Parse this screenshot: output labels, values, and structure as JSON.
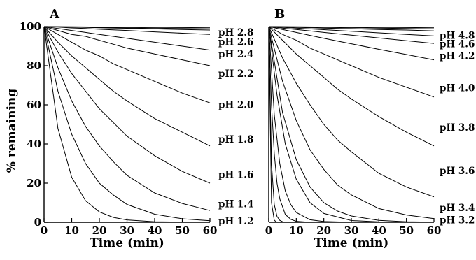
{
  "ylabel": "% remaining",
  "chart_data": [
    {
      "type": "line",
      "panel_label": "A",
      "xlabel": "Time (min)",
      "ylabel": "% remaining",
      "xlim": [
        0,
        60
      ],
      "ylim": [
        0,
        100
      ],
      "xticks": [
        "0",
        "10",
        "20",
        "30",
        "40",
        "50",
        "60"
      ],
      "yticks": [
        "0",
        "20",
        "40",
        "60",
        "80",
        "100"
      ],
      "grid": false,
      "series": [
        {
          "name": "pH 1.2",
          "label_y": 0.7,
          "x": [
            0,
            5,
            10,
            15,
            20,
            25,
            30,
            40,
            50,
            60
          ],
          "values": [
            100,
            48,
            23,
            11,
            5.3,
            2.5,
            1.2,
            0.3,
            0.1,
            0
          ]
        },
        {
          "name": "pH 1.4",
          "label_y": 9.5,
          "x": [
            0,
            5,
            10,
            15,
            20,
            25,
            30,
            40,
            50,
            60
          ],
          "values": [
            100,
            67,
            45,
            30,
            20,
            14,
            9.1,
            4.1,
            1.8,
            0.8
          ]
        },
        {
          "name": "pH 1.6",
          "label_y": 24.5,
          "x": [
            0,
            5,
            10,
            15,
            20,
            25,
            30,
            40,
            50,
            60
          ],
          "values": [
            100,
            79,
            62,
            49,
            39,
            31,
            24,
            15,
            9.6,
            6
          ]
        },
        {
          "name": "pH 1.8",
          "label_y": 42.5,
          "x": [
            0,
            5,
            10,
            15,
            20,
            25,
            30,
            40,
            50,
            60
          ],
          "values": [
            100,
            87,
            76,
            67,
            58,
            51,
            44,
            34,
            26,
            20
          ]
        },
        {
          "name": "pH 2.0",
          "label_y": 60.2,
          "x": [
            0,
            5,
            10,
            15,
            20,
            25,
            30,
            40,
            50,
            60
          ],
          "values": [
            100,
            92,
            85,
            79,
            73,
            67,
            62,
            53,
            46,
            39
          ]
        },
        {
          "name": "pH 2.2",
          "label_y": 76.1,
          "x": [
            0,
            5,
            10,
            15,
            20,
            25,
            30,
            40,
            50,
            60
          ],
          "values": [
            100,
            96,
            92,
            88,
            85,
            81,
            78,
            72,
            66,
            61
          ]
        },
        {
          "name": "pH 2.4",
          "label_y": 86.1,
          "x": [
            0,
            5,
            10,
            15,
            20,
            25,
            30,
            40,
            50,
            60
          ],
          "values": [
            100,
            98,
            96,
            95,
            93,
            91,
            89,
            86,
            83,
            80
          ]
        },
        {
          "name": "pH 2.6",
          "label_y": 92.4,
          "x": [
            0,
            5,
            10,
            15,
            20,
            25,
            30,
            40,
            50,
            60
          ],
          "values": [
            100,
            99,
            98,
            97,
            96,
            95,
            94,
            92,
            90,
            88
          ]
        },
        {
          "name": "pH 2.8",
          "label_y": 97.1,
          "x": [
            0,
            5,
            10,
            15,
            20,
            25,
            30,
            40,
            50,
            60
          ],
          "values": [
            100,
            99.7,
            99.3,
            99,
            98.6,
            98.3,
            98,
            97.3,
            96.6,
            96
          ]
        },
        {
          "x": [
            0,
            10,
            20,
            30,
            40,
            50,
            60
          ],
          "values": [
            100,
            99.7,
            99.4,
            99.1,
            98.8,
            98.5,
            98.2
          ]
        },
        {
          "x": [
            0,
            10,
            20,
            30,
            40,
            50,
            60
          ],
          "values": [
            100,
            99.8,
            99.6,
            99.4,
            99.2,
            99,
            98.8
          ]
        },
        {
          "x": [
            0,
            10,
            20,
            30,
            40,
            50,
            60
          ],
          "values": [
            100,
            99.9,
            99.8,
            99.7,
            99.6,
            99.5,
            99.4
          ]
        }
      ]
    },
    {
      "type": "line",
      "panel_label": "B",
      "xlabel": "Time (min)",
      "ylabel": "",
      "xlim": [
        0,
        60
      ],
      "ylim": [
        0,
        100
      ],
      "xticks": [
        "0",
        "10",
        "20",
        "30",
        "40",
        "50",
        "60"
      ],
      "yticks": [],
      "grid": false,
      "series": [
        {
          "name": "pH 3.2",
          "label_y": 1.3,
          "x": [
            0,
            5,
            10,
            15,
            20,
            25,
            30,
            40,
            50,
            60
          ],
          "values": [
            100,
            56,
            32,
            18,
            10,
            5.7,
            3.2,
            1,
            0.3,
            0.1
          ]
        },
        {
          "name": "pH 3.4",
          "label_y": 7.5,
          "x": [
            0,
            5,
            10,
            15,
            20,
            25,
            30,
            40,
            50,
            60
          ],
          "values": [
            100,
            72,
            52,
            37,
            27,
            19,
            14,
            7,
            3.7,
            1.9
          ]
        },
        {
          "name": "pH 3.6",
          "label_y": 26.5,
          "x": [
            0,
            5,
            10,
            15,
            20,
            25,
            30,
            40,
            50,
            60
          ],
          "values": [
            100,
            84,
            71,
            60,
            50,
            42,
            36,
            25,
            18,
            13
          ]
        },
        {
          "name": "pH 3.8",
          "label_y": 48.5,
          "x": [
            0,
            5,
            10,
            15,
            20,
            25,
            30,
            40,
            50,
            60
          ],
          "values": [
            100,
            93,
            86,
            80,
            74,
            68,
            63,
            54,
            46,
            39
          ]
        },
        {
          "name": "pH 4.0",
          "label_y": 68.8,
          "x": [
            0,
            5,
            10,
            15,
            20,
            25,
            30,
            40,
            50,
            60
          ],
          "values": [
            100,
            96,
            93,
            89,
            86,
            83,
            80,
            74,
            69,
            64
          ]
        },
        {
          "name": "pH 4.2",
          "label_y": 85.2,
          "x": [
            0,
            5,
            10,
            15,
            20,
            25,
            30,
            40,
            50,
            60
          ],
          "values": [
            100,
            98.5,
            97,
            95.5,
            94,
            92.6,
            91.2,
            88.4,
            85.7,
            83
          ]
        },
        {
          "name": "pH 4.6",
          "label_y": 91.3,
          "x": [
            0,
            5,
            10,
            15,
            20,
            25,
            30,
            40,
            50,
            60
          ],
          "values": [
            100,
            99.2,
            98.5,
            97.8,
            97,
            96.3,
            95.6,
            94.2,
            92.8,
            91.4
          ]
        },
        {
          "name": "pH 4.8",
          "label_y": 95.6,
          "x": [
            0,
            5,
            10,
            15,
            20,
            25,
            30,
            40,
            50,
            60
          ],
          "values": [
            100,
            99.6,
            99.2,
            98.8,
            98.4,
            98,
            97.6,
            96.8,
            96,
            95.2
          ]
        },
        {
          "x": [
            0,
            10,
            20,
            30,
            40,
            50,
            60
          ],
          "values": [
            100,
            99.6,
            99.2,
            98.9,
            98.5,
            98.2,
            97.8
          ]
        },
        {
          "x": [
            0,
            10,
            20,
            30,
            40,
            50,
            60
          ],
          "values": [
            100,
            99.8,
            99.6,
            99.4,
            99.2,
            99,
            98.8
          ]
        },
        {
          "x": [
            0,
            10,
            20,
            30,
            40,
            50,
            60
          ],
          "values": [
            100,
            99.9,
            99.8,
            99.7,
            99.6,
            99.5,
            99.4
          ]
        },
        {
          "x": [
            0,
            3,
            6,
            10,
            15,
            20,
            30,
            40,
            60
          ],
          "values": [
            100,
            65,
            40,
            22,
            10,
            4.5,
            0.9,
            0.2,
            0
          ]
        },
        {
          "x": [
            0,
            2,
            4,
            6,
            8,
            10,
            15,
            20,
            30
          ],
          "values": [
            100,
            55,
            30,
            16,
            9,
            5,
            1.3,
            0.4,
            0
          ]
        },
        {
          "x": [
            0,
            1,
            2,
            3,
            4,
            6,
            8,
            10,
            15
          ],
          "values": [
            100,
            60,
            35,
            20,
            12,
            4,
            1.5,
            0.5,
            0
          ]
        },
        {
          "x": [
            0,
            1,
            2,
            3,
            4,
            5,
            6
          ],
          "values": [
            100,
            30,
            9,
            3,
            1,
            0.3,
            0
          ]
        },
        {
          "x": [
            0,
            1,
            2,
            3
          ],
          "values": [
            100,
            10,
            1,
            0
          ]
        }
      ]
    }
  ]
}
